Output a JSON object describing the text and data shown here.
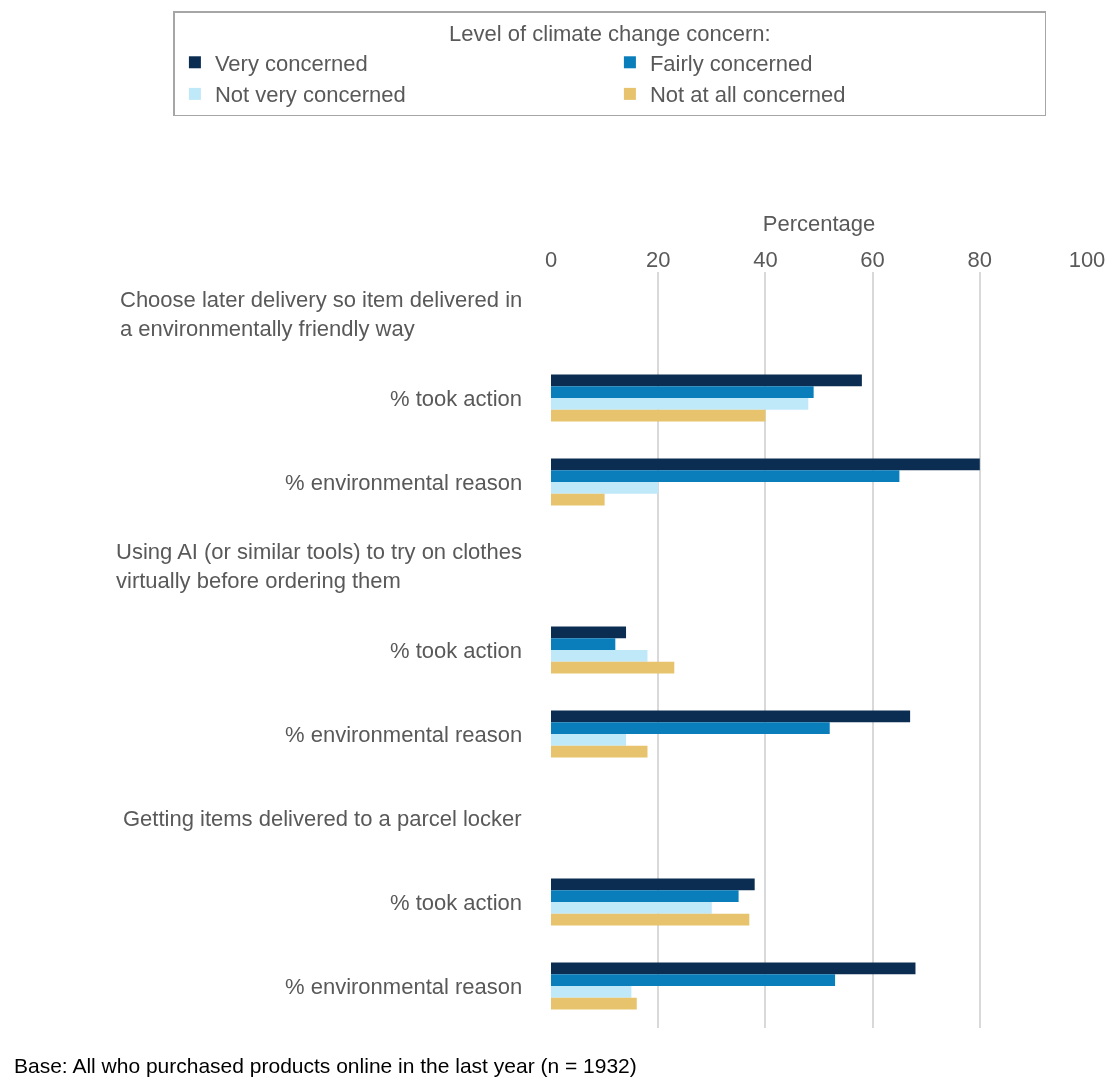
{
  "chart_data": {
    "type": "bar",
    "orientation": "horizontal",
    "xlabel": "Percentage",
    "legend_title": "Level of climate change concern:",
    "categories": [
      "Choose later delivery so item delivered in\na environmentally friendly way",
      "% took action",
      "% environmental reason",
      "Using AI (or similar tools) to try on clothes\nvirtually before ordering them",
      "% took action",
      "% environmental reason",
      "Getting items delivered to a parcel locker",
      "% took action",
      "% environmental reason"
    ],
    "series": [
      {
        "name": "Very concerned",
        "color": "#0b2d52",
        "values": [
          null,
          58,
          80,
          null,
          14,
          67,
          null,
          38,
          68
        ]
      },
      {
        "name": "Fairly concerned",
        "color": "#0a7dbb",
        "values": [
          null,
          49,
          65,
          null,
          12,
          52,
          null,
          35,
          53
        ]
      },
      {
        "name": "Not very concerned",
        "color": "#bfe9f8",
        "values": [
          null,
          48,
          20,
          null,
          18,
          14,
          null,
          30,
          15
        ]
      },
      {
        "name": "Not at all concerned",
        "color": "#e6c36c",
        "values": [
          null,
          40,
          10,
          null,
          23,
          18,
          null,
          37,
          16
        ]
      }
    ],
    "xlim": [
      0,
      100
    ],
    "xticks": [
      0,
      20,
      40,
      60,
      80,
      100
    ],
    "grid": "x",
    "legend": "top",
    "annotations": [
      "Base: All who purchased products online in the last year (n = 1932)"
    ]
  }
}
